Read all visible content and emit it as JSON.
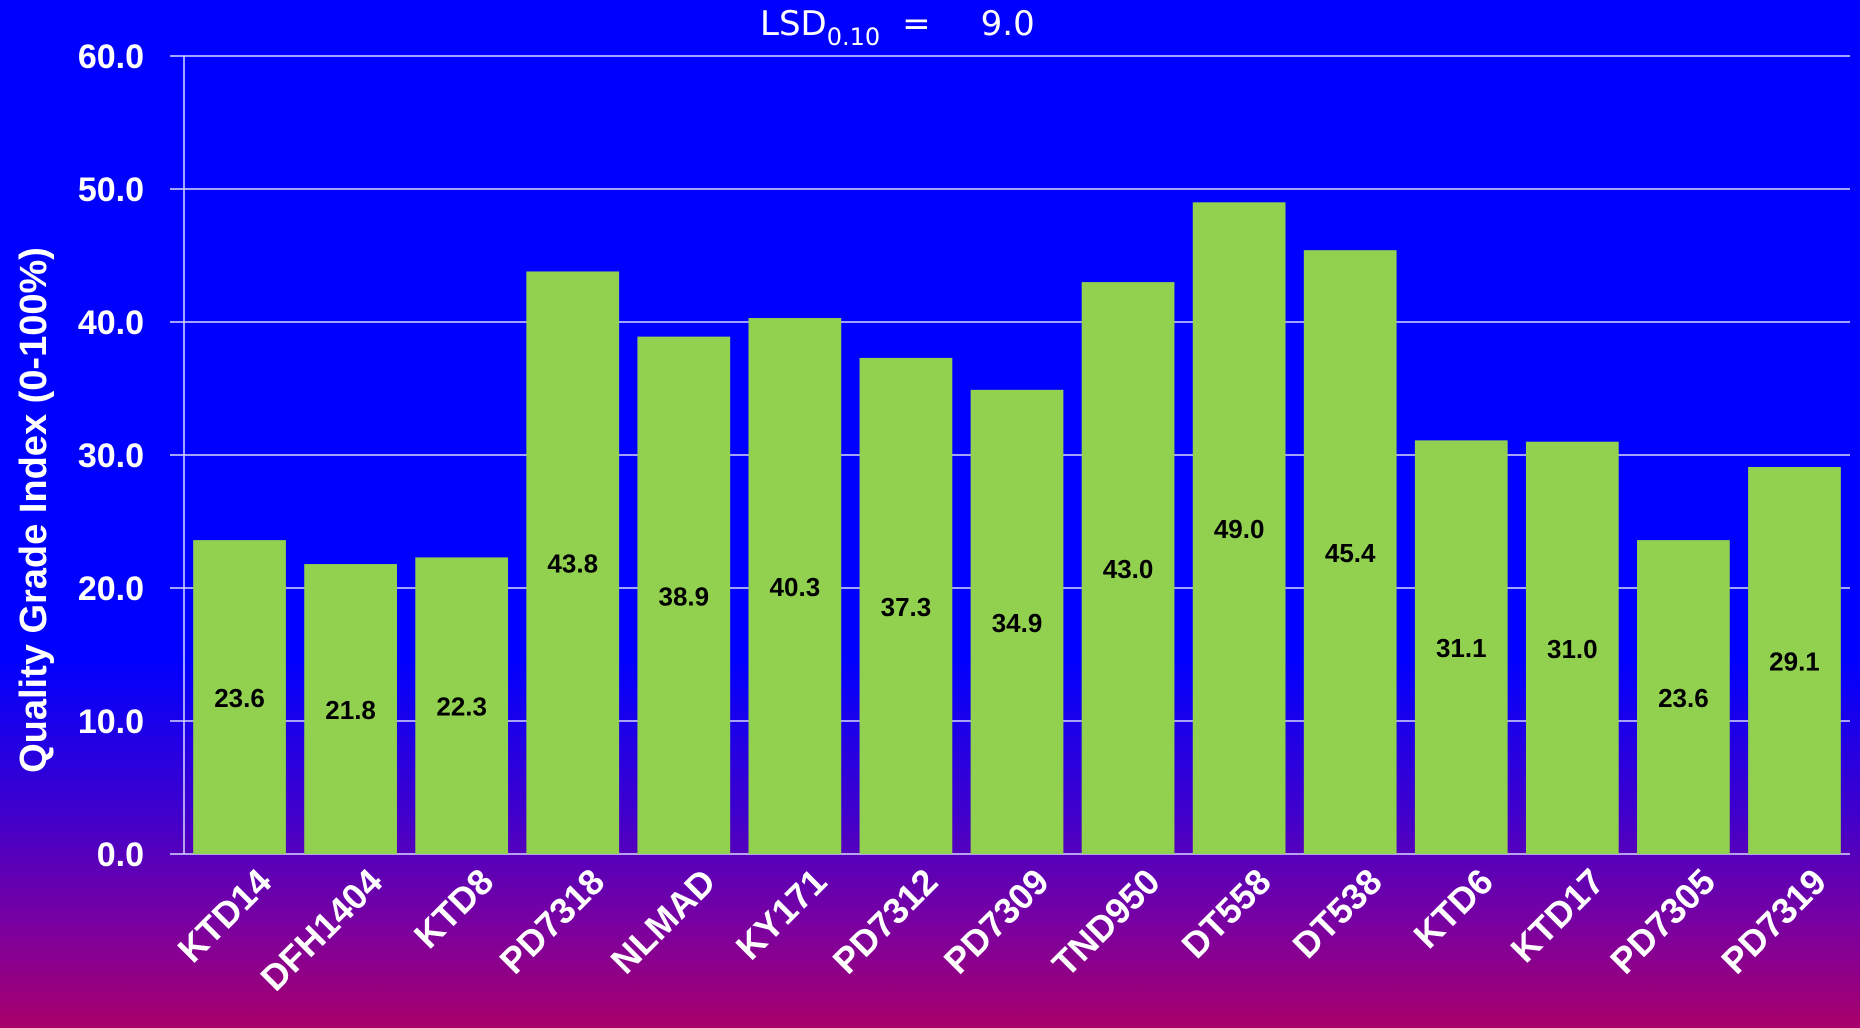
{
  "chart_data": {
    "type": "bar",
    "categories": [
      "KTD14",
      "DFH1404",
      "KTD8",
      "PD7318",
      "NLMAD",
      "KY171",
      "PD7312",
      "PD7309",
      "TND950",
      "DT558",
      "DT538",
      "KTD6",
      "KTD17",
      "PD7305",
      "PD7319"
    ],
    "values": [
      23.6,
      21.8,
      22.3,
      43.8,
      38.9,
      40.3,
      37.3,
      34.9,
      43.0,
      49.0,
      45.4,
      31.1,
      31.0,
      23.6,
      29.1
    ],
    "value_labels": [
      "23.6",
      "21.8",
      "22.3",
      "43.8",
      "38.9",
      "40.3",
      "37.3",
      "34.9",
      "43.0",
      "49.0",
      "45.4",
      "31.1",
      "31.0",
      "23.6",
      "29.1"
    ],
    "title": "",
    "xlabel": "",
    "ylabel": "Quality Grade Index (0-100%)",
    "ylim": [
      0,
      60
    ],
    "yticks": [
      "0.0",
      "10.0",
      "20.0",
      "30.0",
      "40.0",
      "50.0",
      "60.0"
    ],
    "grid": true,
    "legend": "none",
    "bar_color": "#92D050",
    "background_color": "#0000FF",
    "annotation": {
      "label": "LSD",
      "subscript": "0.10",
      "equals": "=",
      "value": "9.0"
    }
  }
}
